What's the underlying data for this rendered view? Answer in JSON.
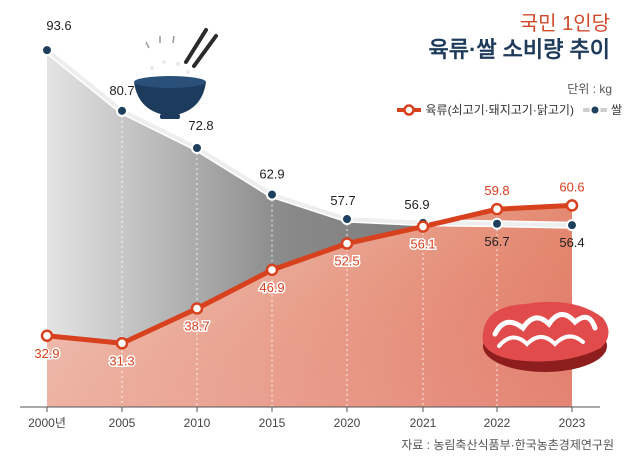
{
  "chart_data": {
    "type": "line",
    "subtitle": "국민 1인당",
    "title": "육류·쌀 소비량 추이",
    "unit": "단위 : kg",
    "source": "자료 : 농림축산식품부·한국농촌경제연구원",
    "categories": [
      "2000년",
      "2005",
      "2010",
      "2015",
      "2020",
      "2021",
      "2022",
      "2023"
    ],
    "series": [
      {
        "name": "육류(쇠고기·돼지고기·닭고기)",
        "values": [
          32.9,
          31.3,
          38.7,
          46.9,
          52.5,
          56.1,
          59.8,
          60.6
        ]
      },
      {
        "name": "쌀",
        "values": [
          93.6,
          80.7,
          72.8,
          62.9,
          57.7,
          56.9,
          56.7,
          56.4
        ]
      }
    ],
    "ylim": [
      15,
      100
    ],
    "colors": {
      "meat": "#d8411e",
      "rice": "#ffffff",
      "rice_marker": "#1e3f5e",
      "area": "#b5b5b5"
    }
  }
}
